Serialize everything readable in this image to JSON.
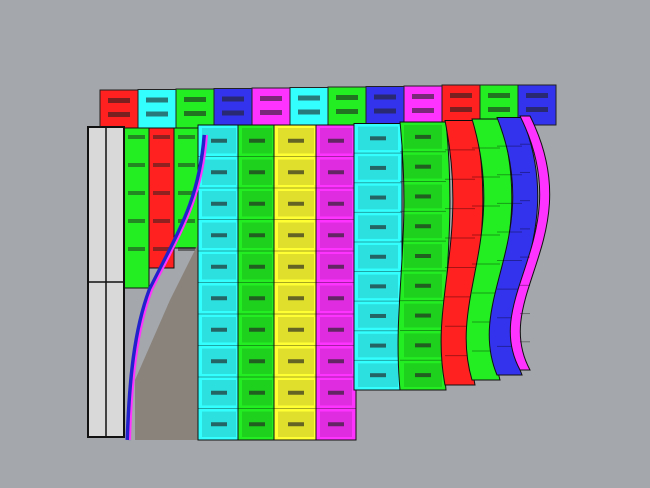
{
  "scene": {
    "background": "#a4a7ab",
    "back_row_colors": [
      "#ff2020",
      "#33ffff",
      "#22ee22",
      "#3333ee",
      "#ff33ff",
      "#33ffff",
      "#22ee22",
      "#3333ee",
      "#ff33ff",
      "#ff2020",
      "#22ee22",
      "#3333ee"
    ],
    "front_columns": [
      {
        "color": "#33ffff",
        "rows": 10
      },
      {
        "color": "#22ee22",
        "rows": 10
      },
      {
        "color": "#ffff33",
        "rows": 10
      },
      {
        "color": "#ff33ff",
        "rows": 10
      },
      {
        "color": "#33ffff",
        "rows": 9
      },
      {
        "color": "#22ee22",
        "rows": 9
      },
      {
        "color": "#ff2020",
        "rows": 9
      },
      {
        "color": "#22ee22",
        "rows": 9
      },
      {
        "color": "#3333ee",
        "rows": 9
      },
      {
        "color": "#ff33ff",
        "rows": 9
      }
    ],
    "side_strip_colors": [
      "#22ee22",
      "#ff2020",
      "#22ee22"
    ],
    "frame_color": "#d9d9d9",
    "wall_color": "#8a837c"
  }
}
